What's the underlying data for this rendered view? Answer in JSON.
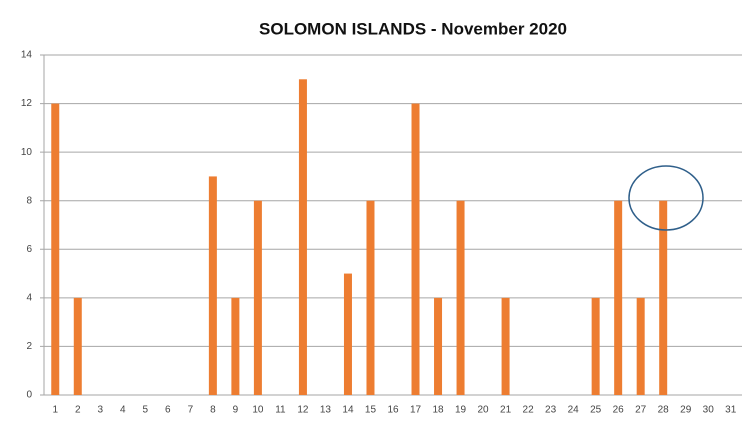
{
  "chart_data": {
    "type": "bar",
    "title": "SOLOMON ISLANDS - November 2020",
    "categories": [
      "1",
      "2",
      "3",
      "4",
      "5",
      "6",
      "7",
      "8",
      "9",
      "10",
      "11",
      "12",
      "13",
      "14",
      "15",
      "16",
      "17",
      "18",
      "19",
      "20",
      "21",
      "22",
      "23",
      "24",
      "25",
      "26",
      "27",
      "28",
      "29",
      "30",
      "31"
    ],
    "values": [
      12,
      4,
      0,
      0,
      0,
      0,
      0,
      9,
      4,
      8,
      0,
      13,
      0,
      5,
      8,
      0,
      12,
      4,
      8,
      0,
      4,
      0,
      0,
      0,
      4,
      8,
      4,
      8,
      0,
      0,
      0
    ],
    "color": "#ed7d31",
    "ylim": [
      0,
      14
    ],
    "yticks": [
      0,
      2,
      4,
      6,
      8,
      10,
      12,
      14
    ],
    "grid": true
  }
}
